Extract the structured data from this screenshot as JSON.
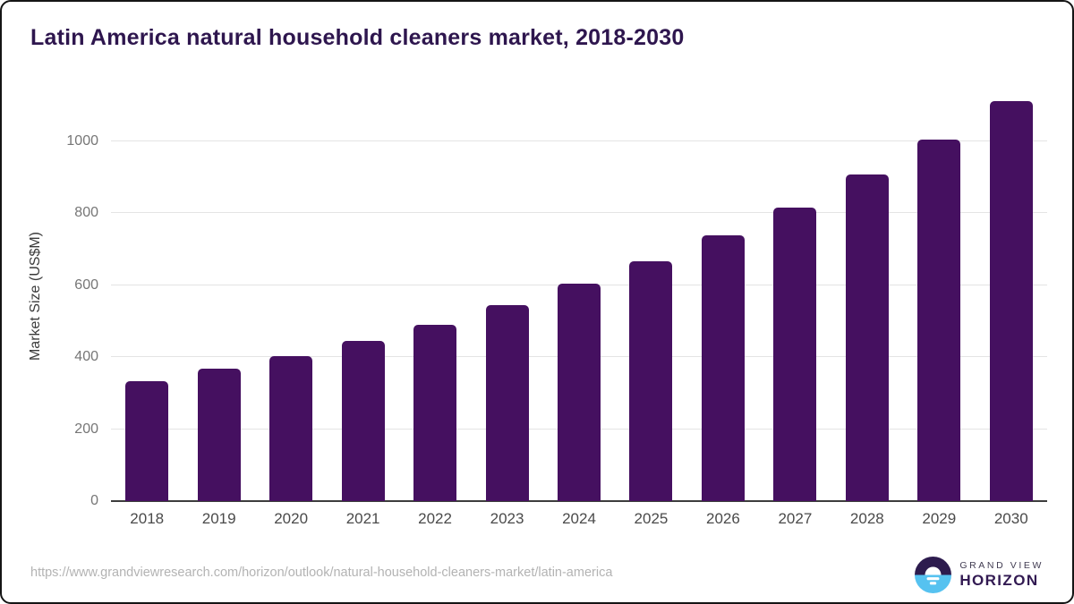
{
  "title": "Latin America natural household cleaners market, 2018-2030",
  "chart_data": {
    "type": "bar",
    "categories": [
      "2018",
      "2019",
      "2020",
      "2021",
      "2022",
      "2023",
      "2024",
      "2025",
      "2026",
      "2027",
      "2028",
      "2029",
      "2030"
    ],
    "values": [
      332,
      368,
      403,
      446,
      490,
      543,
      603,
      667,
      737,
      816,
      906,
      1003,
      1110
    ],
    "title": "Latin America natural household cleaners market, 2018-2030",
    "xlabel": "",
    "ylabel": "Market Size (US$M)",
    "ylim": [
      0,
      1138
    ],
    "yticks": [
      0,
      200,
      400,
      600,
      800,
      1000
    ],
    "grid": true,
    "legend": false,
    "bar_color": "#451060",
    "gridline_color": "#e4e4e4",
    "baseline_color": "#3d3d3d"
  },
  "footer": {
    "source_url": "https://www.grandviewresearch.com/horizon/outlook/natural-household-cleaners-market/latin-america",
    "logo": {
      "brand_top": "GRAND VIEW",
      "brand_bottom": "HORIZON",
      "icon": "horizon-sun-icon",
      "icon_top_color": "#2d1b4e",
      "icon_bottom_color": "#56c2f0"
    }
  },
  "colors": {
    "title_text": "#2e164e",
    "axis_label_text": "#3a3a3a",
    "tick_text": "#767676",
    "category_text": "#4a4a4a",
    "url_text": "#b3b3b3"
  }
}
